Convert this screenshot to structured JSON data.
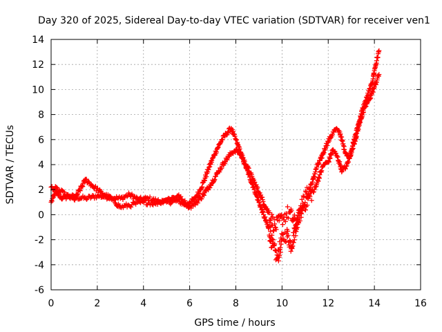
{
  "chart_data": {
    "type": "scatter",
    "title": "Day 320 of 2025, Sidereal Day-to-day VTEC variation (SDTVAR) for receiver ven1",
    "xlabel": "GPS time / hours",
    "ylabel": "SDTVAR / TECUs",
    "xlim": [
      0,
      16
    ],
    "ylim": [
      -6,
      14
    ],
    "x_ticks": [
      0,
      2,
      4,
      6,
      8,
      10,
      12,
      14,
      16
    ],
    "y_ticks": [
      -6,
      -4,
      -2,
      0,
      2,
      4,
      6,
      8,
      10,
      12,
      14
    ],
    "grid": true,
    "marker": "plus",
    "color": "#ff0000",
    "series": [
      {
        "name": "SDTVAR",
        "x": [
          0.0,
          0.1,
          0.2,
          0.3,
          0.5,
          0.8,
          1.0,
          1.5,
          2.0,
          2.5,
          3.0,
          3.4,
          3.8,
          4.2,
          4.6,
          5.0,
          5.5,
          5.8,
          6.0,
          6.2,
          6.4,
          6.6,
          6.8,
          7.0,
          7.2,
          7.4,
          7.6,
          7.8,
          7.9,
          8.0,
          8.2,
          8.4,
          8.6,
          8.8,
          9.0,
          9.2,
          9.4,
          9.6,
          9.8,
          10.0,
          10.2,
          10.4,
          10.6,
          10.8,
          11.3,
          11.5,
          11.7,
          11.9,
          12.1,
          12.3,
          12.5,
          12.7,
          12.9,
          13.1,
          13.3,
          13.5,
          13.7,
          13.9,
          14.0,
          14.1,
          14.2
        ],
        "values": [
          1.0,
          1.4,
          1.8,
          1.6,
          1.3,
          1.5,
          1.4,
          1.3,
          1.5,
          1.4,
          1.3,
          1.6,
          1.2,
          1.3,
          1.1,
          1.0,
          1.1,
          0.8,
          1.0,
          1.2,
          1.8,
          2.6,
          3.6,
          4.5,
          5.3,
          6.0,
          6.5,
          6.9,
          6.4,
          6.0,
          5.0,
          4.0,
          3.0,
          2.0,
          1.0,
          0.0,
          -1.0,
          -2.5,
          -3.5,
          -2.0,
          -1.5,
          -2.5,
          -1.0,
          0.5,
          2.5,
          3.8,
          4.5,
          5.5,
          6.2,
          6.8,
          6.6,
          5.2,
          4.5,
          5.8,
          7.2,
          8.5,
          9.5,
          10.5,
          11.5,
          12.3,
          13.1
        ]
      },
      {
        "name": "SDTVAR",
        "x": [
          0.0,
          0.3,
          0.6,
          1.0,
          1.5,
          1.8,
          2.2,
          2.6,
          3.0,
          3.5,
          4.0,
          4.5,
          5.0,
          5.5,
          6.0,
          6.3,
          6.6,
          6.9,
          7.2,
          7.5,
          7.8,
          8.0,
          8.2,
          8.5,
          8.8,
          9.1,
          9.4,
          9.7,
          10.0,
          10.3,
          10.6,
          10.9,
          11.4,
          11.6,
          11.8,
          12.0,
          12.2,
          12.4,
          12.6,
          12.8,
          13.0,
          13.2,
          13.4,
          13.6,
          13.8,
          14.0,
          14.2
        ],
        "values": [
          2.2,
          2.0,
          1.6,
          1.2,
          2.8,
          2.3,
          1.7,
          1.3,
          0.6,
          0.8,
          1.0,
          0.9,
          1.2,
          1.5,
          0.6,
          1.0,
          1.6,
          2.4,
          3.3,
          4.2,
          4.9,
          5.2,
          4.8,
          3.8,
          2.6,
          1.4,
          0.2,
          -1.0,
          -0.3,
          0.2,
          -0.8,
          0.6,
          2.0,
          3.0,
          4.0,
          4.2,
          5.2,
          4.6,
          3.5,
          3.9,
          5.0,
          6.2,
          7.6,
          8.6,
          9.3,
          10.2,
          11.2
        ]
      }
    ]
  }
}
